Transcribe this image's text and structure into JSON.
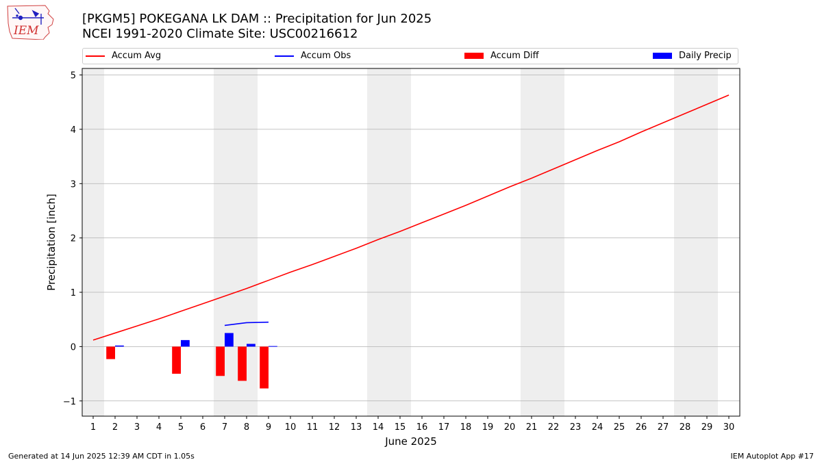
{
  "header": {
    "title_line1": "[PKGM5] POKEGANA LK DAM :: Precipitation for Jun 2025",
    "title_line2": "NCEI 1991-2020 Climate Site: USC00216612",
    "logo_text": "IEM",
    "logo_icon": "iem-iowa-map-logo-icon"
  },
  "legend": {
    "accum_avg": "Accum Avg",
    "accum_obs": "Accum Obs",
    "accum_diff": "Accum Diff",
    "daily_precip": "Daily Precip"
  },
  "footer": {
    "left": "Generated at 14 Jun 2025 12:39 AM CDT in 1.05s",
    "right": "IEM Autoplot App #17"
  },
  "colors": {
    "avg": "#ff0000",
    "obs": "#0000ff",
    "diff": "#ff0000",
    "daily": "#0000ff",
    "weekend": "#eeeeee",
    "grid": "#b0b0b0"
  },
  "chart_data": {
    "type": "bar",
    "xlabel": "June 2025",
    "ylabel": "Precipitation [inch]",
    "xlim": [
      0.5,
      30.5
    ],
    "ylim": [
      -1.28,
      5.12
    ],
    "x_ticks": [
      1,
      2,
      3,
      4,
      5,
      6,
      7,
      8,
      9,
      10,
      11,
      12,
      13,
      14,
      15,
      16,
      17,
      18,
      19,
      20,
      21,
      22,
      23,
      24,
      25,
      26,
      27,
      28,
      29,
      30
    ],
    "y_ticks": [
      -1,
      0,
      1,
      2,
      3,
      4,
      5
    ],
    "y_tick_labels": [
      "−1",
      "0",
      "1",
      "2",
      "3",
      "4",
      "5"
    ],
    "grid": "horizontal",
    "legend_position": "top",
    "weekend_days": [
      1,
      7,
      8,
      14,
      15,
      21,
      22,
      28,
      29
    ],
    "series": [
      {
        "name": "Accum Avg",
        "type": "line",
        "x": [
          1,
          2,
          3,
          4,
          5,
          6,
          7,
          8,
          9,
          10,
          11,
          12,
          13,
          14,
          15,
          16,
          17,
          18,
          19,
          20,
          21,
          22,
          23,
          24,
          25,
          26,
          27,
          28,
          29,
          30
        ],
        "values": [
          0.12,
          0.25,
          0.38,
          0.51,
          0.65,
          0.79,
          0.93,
          1.07,
          1.22,
          1.37,
          1.51,
          1.66,
          1.81,
          1.97,
          2.12,
          2.28,
          2.44,
          2.6,
          2.77,
          2.94,
          3.1,
          3.27,
          3.44,
          3.61,
          3.77,
          3.95,
          4.12,
          4.29,
          4.46,
          4.63
        ]
      },
      {
        "name": "Accum Obs",
        "type": "line",
        "x": [
          7,
          8,
          9
        ],
        "values": [
          0.39,
          0.44,
          0.45
        ]
      },
      {
        "name": "Accum Diff",
        "type": "bar",
        "x": [
          2,
          5,
          7,
          8,
          9
        ],
        "values": [
          -0.23,
          -0.5,
          -0.54,
          -0.63,
          -0.77
        ]
      },
      {
        "name": "Daily Precip",
        "type": "bar",
        "x": [
          2,
          5,
          7,
          8,
          9
        ],
        "values": [
          0.02,
          0.12,
          0.25,
          0.05,
          0.01
        ]
      }
    ]
  }
}
